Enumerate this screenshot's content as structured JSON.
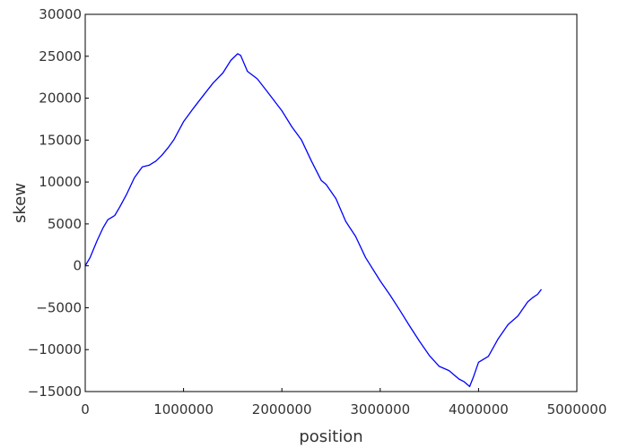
{
  "chart_data": {
    "type": "line",
    "title": "",
    "xlabel": "position",
    "ylabel": "skew",
    "xlim": [
      0,
      5000000
    ],
    "ylim": [
      -15000,
      30000
    ],
    "x_ticks": [
      0,
      1000000,
      2000000,
      3000000,
      4000000,
      5000000
    ],
    "y_ticks": [
      -15000,
      -10000,
      -5000,
      0,
      5000,
      10000,
      15000,
      20000,
      25000,
      30000
    ],
    "x_tick_labels": [
      "0",
      "1000000",
      "2000000",
      "3000000",
      "4000000",
      "5000000"
    ],
    "y_tick_labels": [
      "−15000",
      "−10000",
      "−5000",
      "0",
      "5000",
      "10000",
      "15000",
      "20000",
      "25000",
      "30000"
    ],
    "grid": false,
    "legend": "none",
    "series": [
      {
        "color": "#0000ff",
        "x": [
          0,
          50000,
          120000,
          180000,
          230000,
          300000,
          350000,
          420000,
          500000,
          580000,
          650000,
          720000,
          780000,
          850000,
          900000,
          1000000,
          1100000,
          1200000,
          1300000,
          1400000,
          1480000,
          1550000,
          1580000,
          1650000,
          1750000,
          1850000,
          2000000,
          2100000,
          2200000,
          2300000,
          2400000,
          2450000,
          2550000,
          2650000,
          2750000,
          2850000,
          3000000,
          3100000,
          3200000,
          3300000,
          3400000,
          3500000,
          3600000,
          3700000,
          3800000,
          3850000,
          3910000,
          3950000,
          4000000,
          4100000,
          4200000,
          4300000,
          4400000,
          4500000,
          4550000,
          4600000,
          4640000
        ],
        "y": [
          0,
          1000,
          3000,
          4500,
          5500,
          6000,
          7000,
          8500,
          10500,
          11800,
          12000,
          12500,
          13200,
          14200,
          15000,
          17200,
          18800,
          20300,
          21800,
          23000,
          24500,
          25300,
          25100,
          23200,
          22300,
          20800,
          18500,
          16600,
          15000,
          12500,
          10200,
          9700,
          8000,
          5300,
          3500,
          1000,
          -1800,
          -3500,
          -5300,
          -7200,
          -9000,
          -10700,
          -12000,
          -12500,
          -13500,
          -13800,
          -14400,
          -13200,
          -11500,
          -10800,
          -8700,
          -7000,
          -6000,
          -4300,
          -3800,
          -3400,
          -2800
        ]
      }
    ]
  }
}
